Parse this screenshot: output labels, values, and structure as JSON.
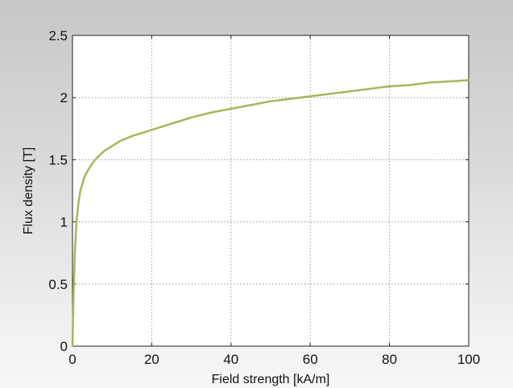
{
  "chart_data": {
    "type": "line",
    "xlabel": "Field strength [kA/m]",
    "ylabel": "Flux density [T]",
    "xlim": [
      0,
      100
    ],
    "ylim": [
      0,
      2.5
    ],
    "x_ticks": [
      "0",
      "20",
      "40",
      "60",
      "80",
      "100"
    ],
    "y_ticks": [
      "0",
      "0.5",
      "1",
      "1.5",
      "2",
      "2.5"
    ],
    "grid": true,
    "series": [
      {
        "color": "#a8b55a",
        "x": [
          0,
          0.3,
          0.6,
          1,
          1.5,
          2,
          3,
          4,
          5,
          6,
          8,
          10,
          12,
          15,
          18,
          20,
          25,
          30,
          35,
          40,
          45,
          50,
          55,
          60,
          65,
          70,
          75,
          80,
          85,
          90,
          95,
          100
        ],
        "y": [
          0,
          0.45,
          0.75,
          1.0,
          1.15,
          1.25,
          1.36,
          1.42,
          1.47,
          1.51,
          1.57,
          1.61,
          1.65,
          1.69,
          1.72,
          1.74,
          1.79,
          1.84,
          1.88,
          1.91,
          1.94,
          1.97,
          1.99,
          2.01,
          2.03,
          2.05,
          2.07,
          2.09,
          2.1,
          2.12,
          2.13,
          2.14
        ]
      }
    ]
  }
}
